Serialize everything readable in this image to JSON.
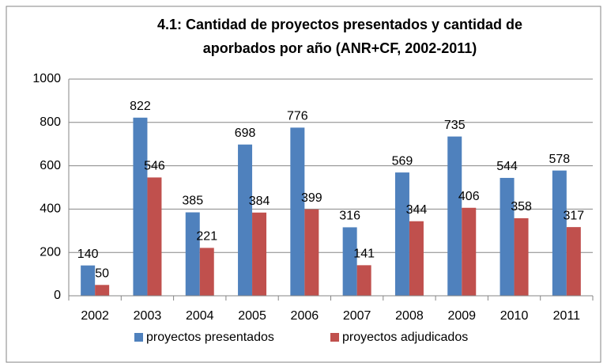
{
  "chart_data": {
    "type": "bar",
    "title": [
      "4.1: Cantidad de proyectos presentados y cantidad de",
      "aporbados por año (ANR+CF, 2002-2011)"
    ],
    "categories": [
      "2002",
      "2003",
      "2004",
      "2005",
      "2006",
      "2007",
      "2008",
      "2009",
      "2010",
      "2011"
    ],
    "series": [
      {
        "name": "proyectos presentados",
        "color": "#4f81bd",
        "values": [
          140,
          822,
          385,
          698,
          776,
          316,
          569,
          735,
          544,
          578
        ]
      },
      {
        "name": "proyectos adjudicados",
        "color": "#c0504d",
        "values": [
          50,
          546,
          221,
          384,
          399,
          141,
          344,
          406,
          358,
          317
        ]
      }
    ],
    "ylim": [
      0,
      1000
    ],
    "yticks": [
      0,
      200,
      400,
      600,
      800,
      1000
    ],
    "grid": true,
    "legend": "bottom"
  }
}
